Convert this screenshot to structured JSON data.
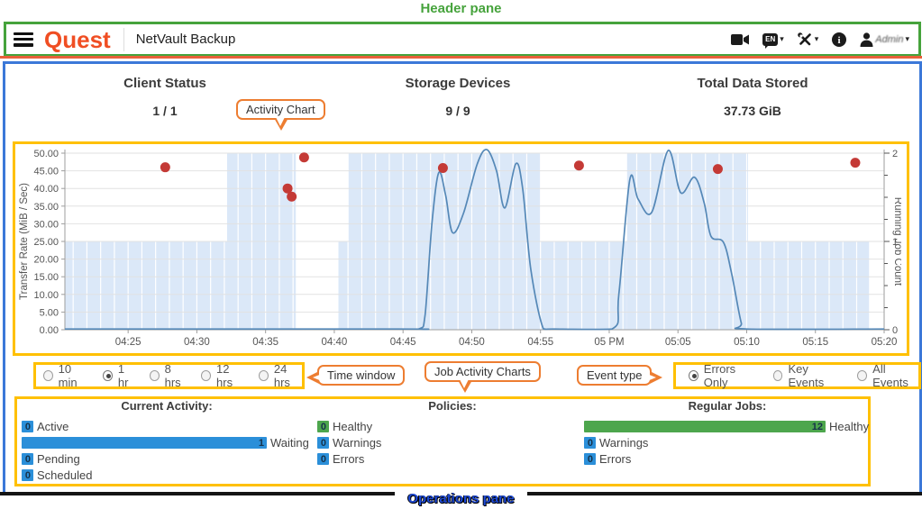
{
  "annotations": {
    "header_pane": "Header pane",
    "activity_chart": "Activity Chart",
    "time_window": "Time window",
    "job_activity_charts": "Job Activity Charts",
    "event_type": "Event type",
    "operations_pane": "Operations pane"
  },
  "colors": {
    "annotation_green": "#46a33c",
    "annotation_orange": "#ed7d31",
    "annotation_yellow": "#ffc000",
    "pane_blue": "#3b78d8",
    "brand_orange": "#f04e23",
    "divider_orange": "#e8613a",
    "line_blue": "#5588b7",
    "band_blue": "#dbe8f8",
    "dot_red": "#c43a36",
    "bar_blue": "#2b8fd9",
    "bar_green": "#4da64d",
    "operations_label_blue": "#1d49d6"
  },
  "header": {
    "brand": "Quest",
    "app_title": "NetVault Backup",
    "language": "EN",
    "username": "Admin",
    "icons": [
      "video-camera-icon",
      "language-icon",
      "tools-icon",
      "info-icon",
      "user-icon"
    ]
  },
  "stats": [
    {
      "label": "Client Status",
      "value": "1 / 1"
    },
    {
      "label": "Storage Devices",
      "value": "9 / 9"
    },
    {
      "label": "Total Data Stored",
      "value": "37.73 GiB"
    }
  ],
  "time_window": {
    "options": [
      {
        "label": "10 min",
        "selected": false
      },
      {
        "label": "1 hr",
        "selected": true
      },
      {
        "label": "8 hrs",
        "selected": false
      },
      {
        "label": "12 hrs",
        "selected": false
      },
      {
        "label": "24 hrs",
        "selected": false
      }
    ]
  },
  "event_type": {
    "options": [
      {
        "label": "Errors Only",
        "selected": true
      },
      {
        "label": "Key Events",
        "selected": false
      },
      {
        "label": "All Events",
        "selected": false
      }
    ]
  },
  "chart_data": [
    {
      "type": "line",
      "title": "Activity Chart",
      "x_axis": {
        "start": 20.4,
        "end": 80,
        "unit": "minutes after 4 PM",
        "ticks": [
          {
            "x": 25,
            "label": "04:25"
          },
          {
            "x": 30,
            "label": "04:30"
          },
          {
            "x": 35,
            "label": "04:35"
          },
          {
            "x": 40,
            "label": "04:40"
          },
          {
            "x": 45,
            "label": "04:45"
          },
          {
            "x": 50,
            "label": "04:50"
          },
          {
            "x": 55,
            "label": "04:55"
          },
          {
            "x": 60,
            "label": "05 PM"
          },
          {
            "x": 65,
            "label": "05:05"
          },
          {
            "x": 70,
            "label": "05:10"
          },
          {
            "x": 75,
            "label": "05:15"
          },
          {
            "x": 80,
            "label": "05:20"
          }
        ]
      },
      "y_left": {
        "title": "Transfer Rate (MiB / Sec)",
        "min": 0,
        "max": 50,
        "step": 5
      },
      "y_right": {
        "title": "Running Job Count",
        "min": 0,
        "max": 2,
        "minor_step": 0.25
      },
      "transfer_rate_line": {
        "points": [
          [
            20.4,
            0.2
          ],
          [
            44.5,
            0.2
          ],
          [
            46.2,
            0.3
          ],
          [
            46.6,
            4
          ],
          [
            47.1,
            30
          ],
          [
            47.6,
            44.5
          ],
          [
            48.1,
            38
          ],
          [
            48.6,
            27.5
          ],
          [
            49.4,
            33
          ],
          [
            50.4,
            47
          ],
          [
            51.1,
            51
          ],
          [
            51.8,
            45
          ],
          [
            52.4,
            34.5
          ],
          [
            53.2,
            47
          ],
          [
            53.7,
            40
          ],
          [
            54.3,
            17
          ],
          [
            55.2,
            0.3
          ],
          [
            56,
            0.2
          ],
          [
            60.2,
            0.2
          ],
          [
            60.7,
            10
          ],
          [
            61.5,
            42.5
          ],
          [
            62.1,
            37
          ],
          [
            63.1,
            33.3
          ],
          [
            64.3,
            50.8
          ],
          [
            65.2,
            38.8
          ],
          [
            66.2,
            43.2
          ],
          [
            66.9,
            36
          ],
          [
            67.4,
            26.5
          ],
          [
            68.3,
            24.8
          ],
          [
            68.9,
            16
          ],
          [
            69.6,
            2
          ],
          [
            70,
            0.2
          ],
          [
            80,
            0.2
          ]
        ]
      },
      "running_job_bands": [
        {
          "from": 20.4,
          "to": 32.2,
          "count": 1
        },
        {
          "from": 32.2,
          "to": 37.2,
          "count": 2
        },
        {
          "from": 37.2,
          "to": 40.3,
          "count": 0
        },
        {
          "from": 40.3,
          "to": 41.0,
          "count": 1
        },
        {
          "from": 41.0,
          "to": 55.0,
          "count": 2
        },
        {
          "from": 55.0,
          "to": 61.3,
          "count": 1
        },
        {
          "from": 61.3,
          "to": 70.1,
          "count": 2
        },
        {
          "from": 70.1,
          "to": 78.9,
          "count": 1
        }
      ],
      "error_events": [
        [
          27.7,
          46
        ],
        [
          36.6,
          40
        ],
        [
          36.9,
          37.7
        ],
        [
          37.8,
          48.8
        ],
        [
          47.9,
          45.8
        ],
        [
          57.8,
          46.5
        ],
        [
          67.9,
          45.5
        ],
        [
          77.9,
          47.3
        ]
      ]
    },
    {
      "type": "bar",
      "title": "Job Activity Charts",
      "groups": [
        {
          "title": "Current Activity:",
          "bars": [
            {
              "label": "Active",
              "value": 0,
              "color": "bar_blue"
            },
            {
              "label": "Waiting",
              "value": 1,
              "color": "bar_blue"
            },
            {
              "label": "Pending",
              "value": 0,
              "color": "bar_blue"
            },
            {
              "label": "Scheduled",
              "value": 0,
              "color": "bar_blue"
            }
          ]
        },
        {
          "title": "Policies:",
          "bars": [
            {
              "label": "Healthy",
              "value": 0,
              "color": "bar_green"
            },
            {
              "label": "Warnings",
              "value": 0,
              "color": "bar_blue"
            },
            {
              "label": "Errors",
              "value": 0,
              "color": "bar_blue"
            }
          ]
        },
        {
          "title": "Regular Jobs:",
          "bars": [
            {
              "label": "Healthy",
              "value": 12,
              "color": "bar_green"
            },
            {
              "label": "Warnings",
              "value": 0,
              "color": "bar_blue"
            },
            {
              "label": "Errors",
              "value": 0,
              "color": "bar_blue"
            }
          ]
        }
      ]
    }
  ]
}
